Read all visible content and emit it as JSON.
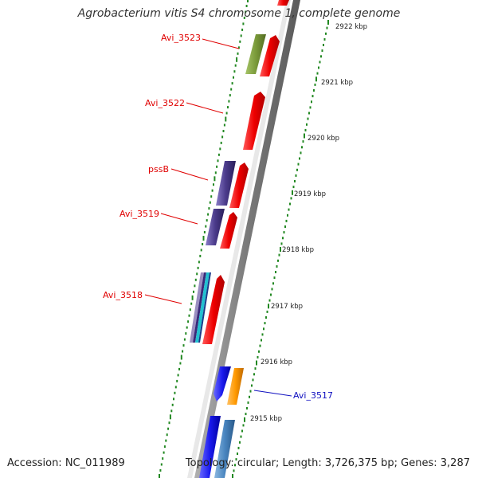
{
  "title": "Agrobacterium vitis S4 chromosome 1, complete genome",
  "accession": "Accession: NC_011989",
  "topology": "Topology: circular; Length: 3,726,375 bp; Genes: 3,287",
  "colors": {
    "forward_label": "#e00000",
    "reverse_label": "#1010c0",
    "backbone": "#888888",
    "tick": "#228822",
    "cds_red": "#ee0000",
    "cds_olive": "#7a9a3a",
    "cds_purple": "#4a3a8a",
    "cds_blue": "#1a1aee",
    "cds_orange": "#ff9900",
    "cds_steel": "#4a86c0",
    "cds_cyan": "#22c0d0"
  },
  "gene_labels": [
    {
      "name": "Avi_3523",
      "strand": "forward"
    },
    {
      "name": "Avi_3522",
      "strand": "forward"
    },
    {
      "name": "pssB",
      "strand": "forward"
    },
    {
      "name": "Avi_3519",
      "strand": "forward"
    },
    {
      "name": "Avi_3518",
      "strand": "forward"
    },
    {
      "name": "Avi_3517",
      "strand": "reverse"
    }
  ],
  "ticks": [
    "2922 kbp",
    "2921 kbp",
    "2920 kbp",
    "2919 kbp",
    "2918 kbp",
    "2917 kbp",
    "2916 kbp",
    "2915 kbp"
  ]
}
